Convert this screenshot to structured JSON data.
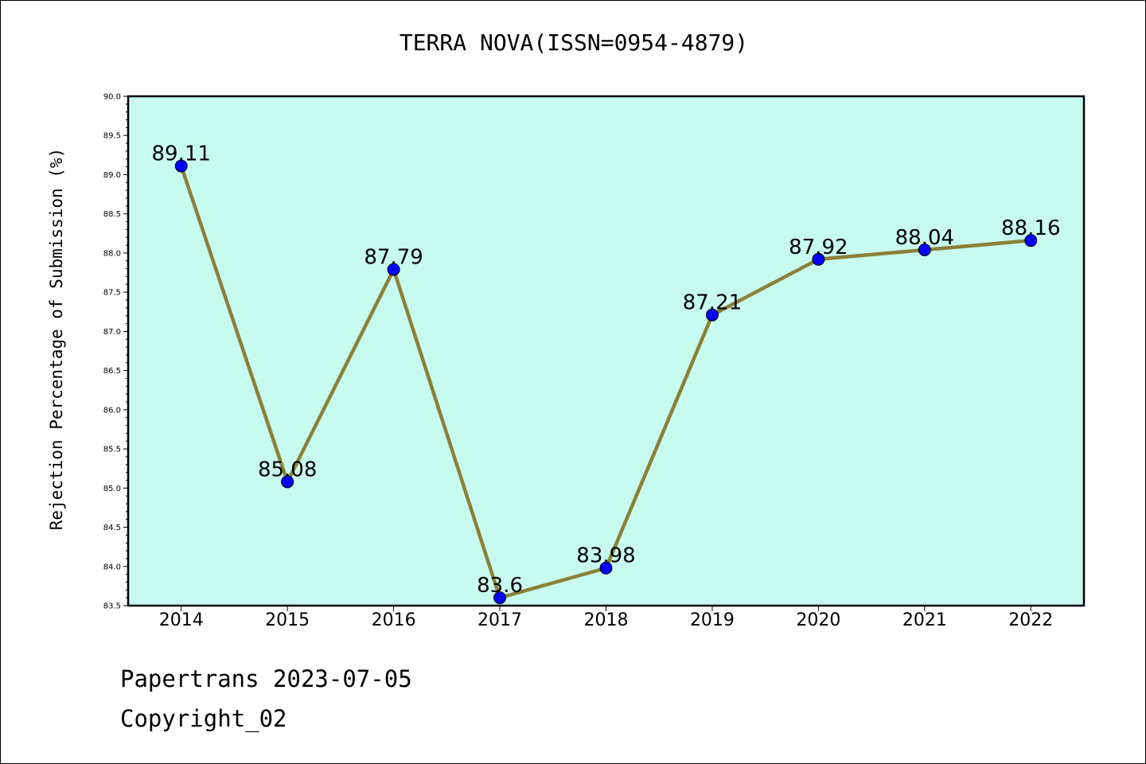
{
  "chart_data": {
    "type": "line",
    "title": "TERRA NOVA(ISSN=0954-4879)",
    "xlabel": "",
    "ylabel": "Rejection Percentage of Submission (%)",
    "categories": [
      "2014",
      "2015",
      "2016",
      "2017",
      "2018",
      "2019",
      "2020",
      "2021",
      "2022"
    ],
    "series": [
      {
        "values": [
          89.11,
          85.08,
          87.79,
          83.6,
          83.98,
          87.21,
          87.92,
          88.04,
          88.16
        ],
        "labels": [
          "89.11",
          "85.08",
          "87.79",
          "83.6",
          "83.98",
          "87.21",
          "87.92",
          "88.04",
          "88.16"
        ]
      }
    ],
    "ylim": [
      83.5,
      90.0
    ],
    "yticks": [
      "83.5",
      "84.0",
      "84.5",
      "85.0",
      "85.5",
      "86.0",
      "86.5",
      "87.0",
      "87.5",
      "88.0",
      "88.5",
      "89.0",
      "89.5",
      "90.0"
    ],
    "grid": false,
    "legend": "none",
    "colors": {
      "plot_background": "#c8fbef",
      "line": "#8b8038",
      "marker": "#0000ff",
      "axis": "#000000"
    }
  },
  "footer": {
    "line1": "Papertrans 2023-07-05",
    "line2": "Copyright_02"
  }
}
